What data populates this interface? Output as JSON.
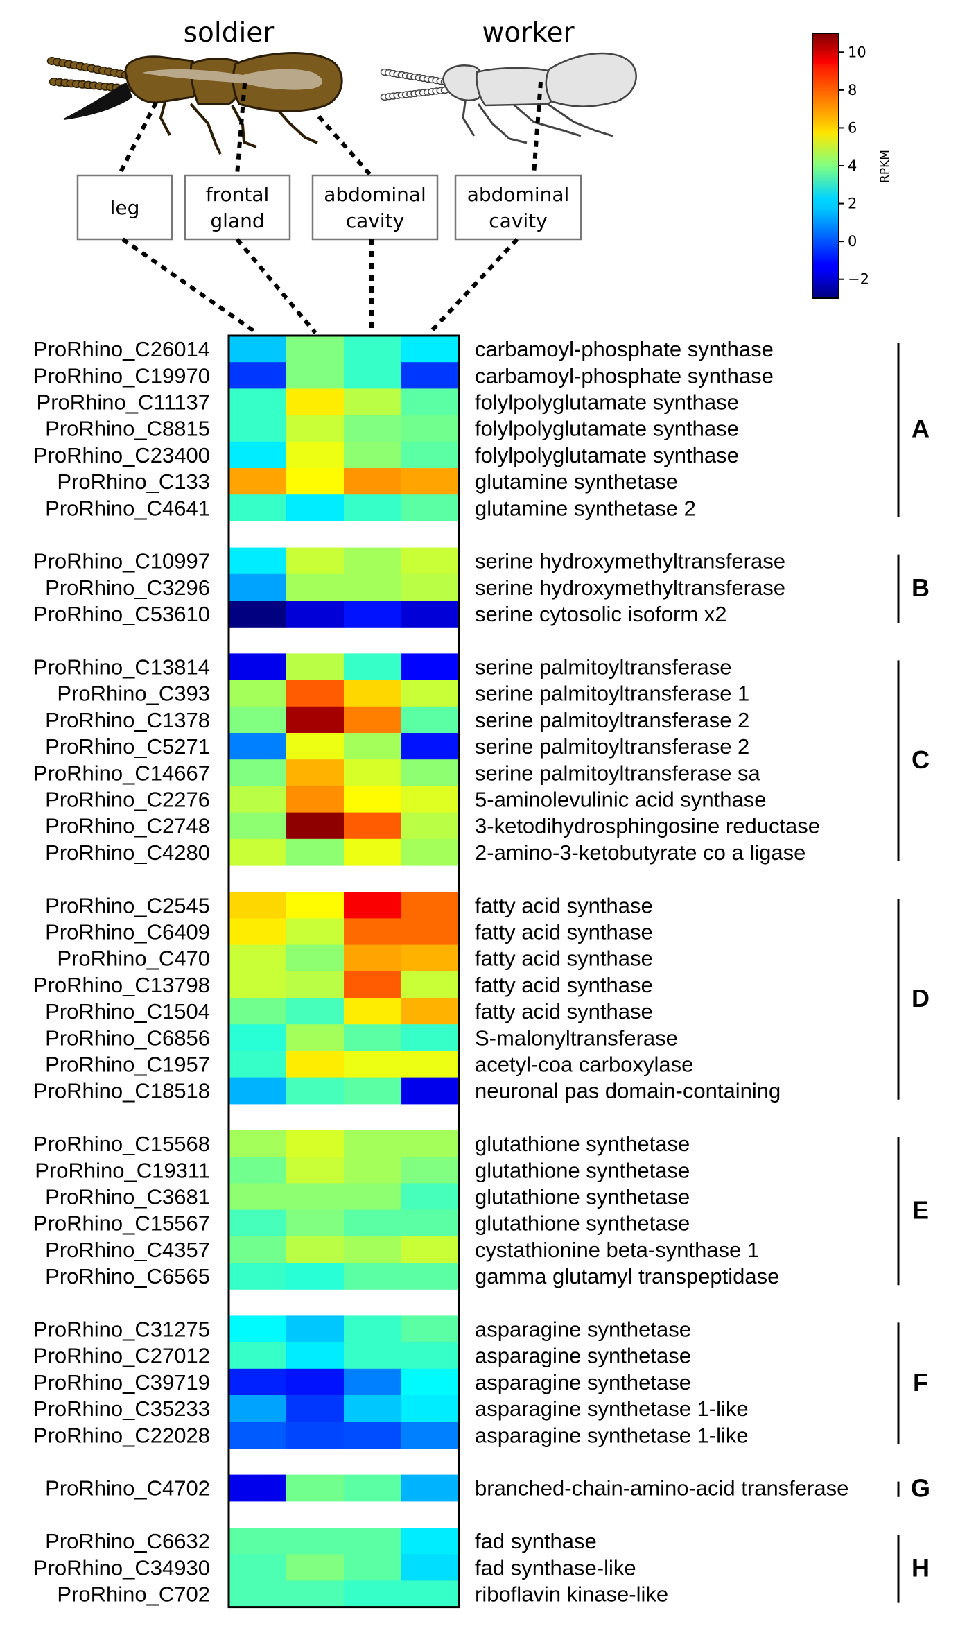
{
  "header": {
    "soldier_label": "soldier",
    "worker_label": "worker"
  },
  "tissue_boxes": [
    {
      "lines": [
        "leg"
      ]
    },
    {
      "lines": [
        "frontal",
        "gland"
      ]
    },
    {
      "lines": [
        "abdominal",
        "cavity"
      ]
    },
    {
      "lines": [
        "abdominal",
        "cavity"
      ]
    }
  ],
  "colors": {
    "soldier_body": "#7b5a1e",
    "soldier_stripe": "#b9a98a",
    "soldier_mandible": "#111111",
    "worker_body": "#e4e4e4",
    "outline": "#444444"
  },
  "chart_data": {
    "type": "heatmap",
    "title": "",
    "columns": [
      "leg",
      "frontal gland",
      "abdominal cavity",
      "abdominal cavity"
    ],
    "colorbar": {
      "label": "RPKM",
      "min": -3,
      "max": 11,
      "ticks": [
        -2,
        0,
        2,
        4,
        6,
        8,
        10
      ],
      "tick_labels": [
        "−2",
        "0",
        "2",
        "4",
        "6",
        "8",
        "10"
      ],
      "colormap": "jet"
    },
    "groups": [
      {
        "letter": "A",
        "rows": [
          {
            "gene": "ProRhino_C26014",
            "annotation": "carbamoyl-phosphate synthase",
            "values": [
              1.5,
              4.0,
              3.0,
              2.0
            ]
          },
          {
            "gene": "ProRhino_C19970",
            "annotation": "carbamoyl-phosphate synthase",
            "values": [
              -0.5,
              4.0,
              3.0,
              -0.5
            ]
          },
          {
            "gene": "ProRhino_C11137",
            "annotation": "folylpolyglutamate synthase",
            "values": [
              3.0,
              6.0,
              4.8,
              3.5
            ]
          },
          {
            "gene": "ProRhino_C8815",
            "annotation": "folylpolyglutamate synthase",
            "values": [
              3.0,
              5.0,
              4.0,
              3.8
            ]
          },
          {
            "gene": "ProRhino_C23400",
            "annotation": "folylpolyglutamate synthase",
            "values": [
              2.0,
              5.5,
              4.2,
              3.5
            ]
          },
          {
            "gene": "ProRhino_C133",
            "annotation": "glutamine synthetase",
            "values": [
              7.0,
              5.8,
              7.2,
              7.0
            ]
          },
          {
            "gene": "ProRhino_C4641",
            "annotation": "glutamine synthetase 2",
            "values": [
              3.0,
              2.0,
              3.0,
              3.5
            ]
          }
        ]
      },
      {
        "letter": "B",
        "rows": [
          {
            "gene": "ProRhino_C10997",
            "annotation": "serine hydroxymethyltransferase",
            "values": [
              2.0,
              5.0,
              4.5,
              5.0
            ]
          },
          {
            "gene": "ProRhino_C3296",
            "annotation": "serine hydroxymethyltransferase",
            "values": [
              1.0,
              4.5,
              4.5,
              4.8
            ]
          },
          {
            "gene": "ProRhino_C53610",
            "annotation": "serine cytosolic isoform x2",
            "values": [
              -3.0,
              -1.8,
              -1.0,
              -1.8
            ]
          }
        ]
      },
      {
        "letter": "C",
        "rows": [
          {
            "gene": "ProRhino_C13814",
            "annotation": "serine palmitoyltransferase",
            "values": [
              -1.5,
              4.8,
              3.0,
              -1.2
            ]
          },
          {
            "gene": "ProRhino_C393",
            "annotation": "serine palmitoyltransferase 1",
            "values": [
              4.5,
              8.0,
              6.3,
              5.0
            ]
          },
          {
            "gene": "ProRhino_C1378",
            "annotation": "serine palmitoyltransferase 2",
            "values": [
              4.0,
              10.5,
              7.5,
              3.5
            ]
          },
          {
            "gene": "ProRhino_C5271",
            "annotation": "serine palmitoyltransferase 2",
            "values": [
              0.5,
              5.5,
              4.5,
              -1.0
            ]
          },
          {
            "gene": "ProRhino_C14667",
            "annotation": "serine palmitoyltransferase sa",
            "values": [
              4.0,
              6.8,
              5.2,
              4.2
            ]
          },
          {
            "gene": "ProRhino_C2276",
            "annotation": "5-aminolevulinic acid synthase",
            "values": [
              4.8,
              7.3,
              5.8,
              5.3
            ]
          },
          {
            "gene": "ProRhino_C2748",
            "annotation": "3-ketodihydrosphingosine reductase",
            "values": [
              4.2,
              10.8,
              8.0,
              4.8
            ]
          },
          {
            "gene": "ProRhino_C4280",
            "annotation": "2-amino-3-ketobutyrate co a ligase",
            "values": [
              5.0,
              4.2,
              5.5,
              4.5
            ]
          }
        ]
      },
      {
        "letter": "D",
        "rows": [
          {
            "gene": "ProRhino_C2545",
            "annotation": "fatty acid synthase",
            "values": [
              6.3,
              5.8,
              9.3,
              7.8
            ]
          },
          {
            "gene": "ProRhino_C6409",
            "annotation": "fatty acid synthase",
            "values": [
              6.0,
              5.0,
              7.8,
              7.8
            ]
          },
          {
            "gene": "ProRhino_C470",
            "annotation": "fatty acid synthase",
            "values": [
              5.0,
              4.2,
              7.0,
              6.8
            ]
          },
          {
            "gene": "ProRhino_C13798",
            "annotation": "fatty acid synthase",
            "values": [
              5.0,
              4.8,
              8.0,
              5.0
            ]
          },
          {
            "gene": "ProRhino_C1504",
            "annotation": "fatty acid synthase",
            "values": [
              3.8,
              3.2,
              6.0,
              6.8
            ]
          },
          {
            "gene": "ProRhino_C6856",
            "annotation": "S-malonyltransferase",
            "values": [
              2.8,
              4.5,
              3.5,
              3.0
            ]
          },
          {
            "gene": "ProRhino_C1957",
            "annotation": "acetyl-coa carboxylase",
            "values": [
              3.0,
              6.0,
              5.5,
              5.5
            ]
          },
          {
            "gene": "ProRhino_C18518",
            "annotation": "neuronal pas domain-containing",
            "values": [
              1.2,
              3.2,
              3.5,
              -1.5
            ]
          }
        ]
      },
      {
        "letter": "E",
        "rows": [
          {
            "gene": "ProRhino_C15568",
            "annotation": "glutathione synthetase",
            "values": [
              4.5,
              5.2,
              4.5,
              4.5
            ]
          },
          {
            "gene": "ProRhino_C19311",
            "annotation": "glutathione synthetase",
            "values": [
              3.8,
              5.0,
              4.5,
              4.0
            ]
          },
          {
            "gene": "ProRhino_C3681",
            "annotation": "glutathione synthetase",
            "values": [
              4.2,
              4.2,
              4.2,
              3.2
            ]
          },
          {
            "gene": "ProRhino_C15567",
            "annotation": "glutathione synthetase",
            "values": [
              3.2,
              4.0,
              3.5,
              3.5
            ]
          },
          {
            "gene": "ProRhino_C4357",
            "annotation": "cystathionine beta-synthase 1",
            "values": [
              3.8,
              4.8,
              4.5,
              5.0
            ]
          },
          {
            "gene": "ProRhino_C6565",
            "annotation": "gamma glutamyl transpeptidase",
            "values": [
              3.0,
              2.8,
              3.5,
              3.5
            ]
          }
        ]
      },
      {
        "letter": "F",
        "rows": [
          {
            "gene": "ProRhino_C31275",
            "annotation": "asparagine synthetase",
            "values": [
              2.2,
              1.5,
              3.0,
              3.5
            ]
          },
          {
            "gene": "ProRhino_C27012",
            "annotation": "asparagine synthetase",
            "values": [
              3.0,
              2.0,
              3.0,
              3.0
            ]
          },
          {
            "gene": "ProRhino_C39719",
            "annotation": "asparagine synthetase",
            "values": [
              -0.8,
              -1.0,
              0.5,
              2.2
            ]
          },
          {
            "gene": "ProRhino_C35233",
            "annotation": "asparagine synthetase 1-like",
            "values": [
              1.0,
              -0.5,
              1.5,
              2.0
            ]
          },
          {
            "gene": "ProRhino_C22028",
            "annotation": "asparagine synthetase 1-like",
            "values": [
              0.0,
              -0.3,
              -0.2,
              0.5
            ]
          }
        ]
      },
      {
        "letter": "G",
        "rows": [
          {
            "gene": "ProRhino_C4702",
            "annotation": "branched-chain-amino-acid transferase",
            "values": [
              -1.5,
              3.8,
              3.5,
              1.2
            ]
          }
        ]
      },
      {
        "letter": "H",
        "rows": [
          {
            "gene": "ProRhino_C6632",
            "annotation": "fad synthase",
            "values": [
              3.5,
              3.5,
              3.5,
              2.0
            ]
          },
          {
            "gene": "ProRhino_C34930",
            "annotation": "fad synthase-like",
            "values": [
              3.3,
              4.0,
              3.5,
              1.8
            ]
          },
          {
            "gene": "ProRhino_C702",
            "annotation": "riboflavin kinase-like",
            "values": [
              3.3,
              3.3,
              3.0,
              3.0
            ]
          }
        ]
      }
    ]
  }
}
